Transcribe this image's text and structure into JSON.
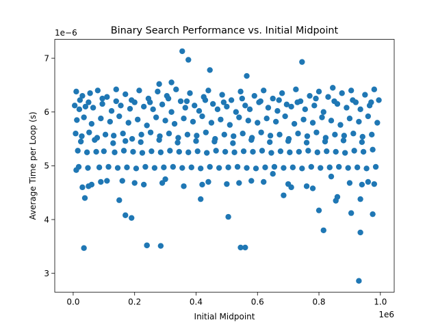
{
  "chart_data": {
    "type": "scatter",
    "title": "Binary Search Performance vs. Initial Midpoint",
    "xlabel": "Initial Midpoint",
    "ylabel": "Average Time per Loop (s)",
    "x_offset_text": "1e6",
    "y_offset_text": "1e−6",
    "x_scale_factor": 1000000,
    "y_scale_factor": 1e-06,
    "xlim": [
      -60000,
      1045000
    ],
    "ylim": [
      2.65,
      7.35
    ],
    "x_ticks": [
      0,
      200000,
      400000,
      600000,
      800000,
      1000000
    ],
    "x_tick_labels": [
      "0.0",
      "0.2",
      "0.4",
      "0.6",
      "0.8",
      "1.0"
    ],
    "y_ticks": [
      3,
      4,
      5,
      6,
      7
    ],
    "y_tick_labels": [
      "3",
      "4",
      "5",
      "6",
      "7"
    ],
    "grid": false,
    "legend": "none",
    "marker_color": "#1f77b4",
    "series": [
      {
        "x": [
          5000,
          10000,
          20000,
          30000,
          40000,
          55000,
          65000,
          80000,
          95000,
          110000,
          125000,
          140000,
          155000,
          170000,
          185000,
          200000,
          215000,
          230000,
          245000,
          260000,
          275000,
          290000,
          305000,
          320000,
          335000,
          350000,
          365000,
          380000,
          395000,
          410000,
          425000,
          440000,
          455000,
          470000,
          485000,
          500000,
          515000,
          530000,
          545000,
          560000,
          575000,
          590000,
          605000,
          620000,
          635000,
          650000,
          665000,
          680000,
          695000,
          710000,
          725000,
          740000,
          755000,
          770000,
          785000,
          800000,
          815000,
          830000,
          845000,
          860000,
          875000,
          890000,
          905000,
          920000,
          935000,
          950000,
          965000,
          980000,
          995000,
          12000,
          35000,
          60000,
          90000,
          120000,
          150000,
          180000,
          210000,
          240000,
          270000,
          300000,
          330000,
          360000,
          390000,
          420000,
          450000,
          480000,
          510000,
          540000,
          570000,
          600000,
          630000,
          660000,
          690000,
          720000,
          750000,
          780000,
          810000,
          840000,
          870000,
          900000,
          930000,
          960000,
          990000,
          8000,
          28000,
          52000,
          78000,
          105000,
          132000,
          162000,
          192000,
          222000,
          252000,
          282000,
          312000,
          342000,
          372000,
          402000,
          432000,
          462000,
          492000,
          522000,
          552000,
          582000,
          612000,
          642000,
          672000,
          702000,
          732000,
          762000,
          792000,
          822000,
          852000,
          882000,
          912000,
          942000,
          972000,
          15000,
          45000,
          75000,
          100000,
          135000,
          165000,
          195000,
          225000,
          255000,
          285000,
          315000,
          345000,
          375000,
          405000,
          435000,
          465000,
          495000,
          525000,
          555000,
          585000,
          615000,
          645000,
          675000,
          705000,
          735000,
          765000,
          795000,
          825000,
          855000,
          885000,
          915000,
          945000,
          975000,
          18000,
          48000,
          85000,
          115000,
          145000,
          175000,
          205000,
          235000,
          265000,
          295000,
          325000,
          355000,
          385000,
          415000,
          445000,
          475000,
          505000,
          535000,
          565000,
          595000,
          625000,
          655000,
          685000,
          715000,
          745000,
          775000,
          805000,
          835000,
          865000,
          895000,
          925000,
          955000,
          985000,
          25000,
          70000,
          130000,
          170000,
          220000,
          280000,
          340000,
          400000,
          460000,
          520000,
          580000,
          640000,
          700000,
          760000,
          820000,
          880000,
          940000,
          22000,
          50000,
          95000,
          140000,
          190000,
          250000,
          310000,
          370000,
          430000,
          490000,
          550000,
          610000,
          670000,
          730000,
          790000,
          850000,
          910000,
          970000,
          35000,
          150000,
          240000,
          355000,
          375000,
          445000,
          745000,
          565000,
          320000,
          280000,
          60000,
          170000,
          190000,
          415000,
          505000,
          685000,
          800000,
          815000,
          855000,
          905000,
          935000,
          960000,
          975000,
          38000,
          240000,
          285000,
          545000,
          560000,
          935000,
          930000,
          10000,
          50000,
          110000,
          200000,
          300000,
          420000,
          540000,
          620000,
          700000,
          760000,
          840000,
          900000,
          980000,
          30000,
          90000,
          160000,
          230000,
          290000,
          360000,
          440000,
          500000,
          580000,
          650000,
          710000,
          780000,
          860000,
          940000
        ],
        "y": [
          6.12,
          6.38,
          6.05,
          6.3,
          6.1,
          6.35,
          6.08,
          6.4,
          6.15,
          6.28,
          6.02,
          6.42,
          6.12,
          6.33,
          6.06,
          6.18,
          6.4,
          6.1,
          6.25,
          6.05,
          6.38,
          6.14,
          6.3,
          6.0,
          6.42,
          6.2,
          6.08,
          6.35,
          6.12,
          6.02,
          6.28,
          6.4,
          6.15,
          6.05,
          6.32,
          6.1,
          6.22,
          6.0,
          6.38,
          6.12,
          6.05,
          6.3,
          6.18,
          6.4,
          6.08,
          6.25,
          6.02,
          6.35,
          6.14,
          6.1,
          6.42,
          6.2,
          6.05,
          6.3,
          6.12,
          6.38,
          6.0,
          6.28,
          6.45,
          6.15,
          6.35,
          6.08,
          6.4,
          6.18,
          6.05,
          6.32,
          6.12,
          6.42,
          6.22,
          5.85,
          5.9,
          5.78,
          5.88,
          5.82,
          5.92,
          5.8,
          5.86,
          5.75,
          5.9,
          5.84,
          5.78,
          5.88,
          5.82,
          5.92,
          5.8,
          5.86,
          5.76,
          5.9,
          5.84,
          5.8,
          5.88,
          5.82,
          5.92,
          5.78,
          5.86,
          5.8,
          5.9,
          5.84,
          5.76,
          5.88,
          5.82,
          5.92,
          5.8,
          5.6,
          5.55,
          5.62,
          5.52,
          5.58,
          5.56,
          5.6,
          5.5,
          5.58,
          5.62,
          5.55,
          5.6,
          5.52,
          5.58,
          5.56,
          5.62,
          5.5,
          5.58,
          5.55,
          5.6,
          5.52,
          5.62,
          5.56,
          5.58,
          5.5,
          5.6,
          5.55,
          5.62,
          5.52,
          5.58,
          5.56,
          5.6,
          5.54,
          5.58,
          5.28,
          5.25,
          5.26,
          5.27,
          5.25,
          5.28,
          5.26,
          5.24,
          5.27,
          5.25,
          5.28,
          5.26,
          5.25,
          5.27,
          5.24,
          5.28,
          5.26,
          5.25,
          5.27,
          5.26,
          5.28,
          5.24,
          5.27,
          5.25,
          5.26,
          5.28,
          5.25,
          5.27,
          5.26,
          5.24,
          5.28,
          5.26,
          5.3,
          4.98,
          4.96,
          4.97,
          4.98,
          4.96,
          4.97,
          4.95,
          4.98,
          4.96,
          4.97,
          4.98,
          4.96,
          4.97,
          4.95,
          4.98,
          4.96,
          4.97,
          4.98,
          4.96,
          4.95,
          4.97,
          4.98,
          4.96,
          4.97,
          4.95,
          4.98,
          4.96,
          4.97,
          4.98,
          4.96,
          4.97,
          4.95,
          4.98,
          5.45,
          5.48,
          5.42,
          5.46,
          5.44,
          5.48,
          5.43,
          5.46,
          5.45,
          5.42,
          5.48,
          5.44,
          5.46,
          5.43,
          5.45,
          5.47,
          5.44,
          6.22,
          6.18,
          6.25,
          6.2,
          6.22,
          6.18,
          6.25,
          6.2,
          6.22,
          6.18,
          6.25,
          6.2,
          6.22,
          6.18,
          6.25,
          6.2,
          6.22,
          6.18,
          3.47,
          4.36,
          3.52,
          7.13,
          6.97,
          6.78,
          6.93,
          6.67,
          6.55,
          6.52,
          4.65,
          4.08,
          4.03,
          4.38,
          4.05,
          4.45,
          4.17,
          3.8,
          4.35,
          4.12,
          4.38,
          4.7,
          4.1,
          4.4,
          3.52,
          3.51,
          3.48,
          3.48,
          3.76,
          2.86,
          4.92,
          4.62,
          4.72,
          4.68,
          4.75,
          4.65,
          4.68,
          4.7,
          4.66,
          4.62,
          4.8,
          4.68,
          4.66,
          4.6,
          4.7,
          4.72,
          4.65,
          4.68,
          4.62,
          4.7,
          4.66,
          4.72,
          4.85,
          4.6,
          4.58,
          4.42,
          4.65
        ]
      }
    ]
  }
}
